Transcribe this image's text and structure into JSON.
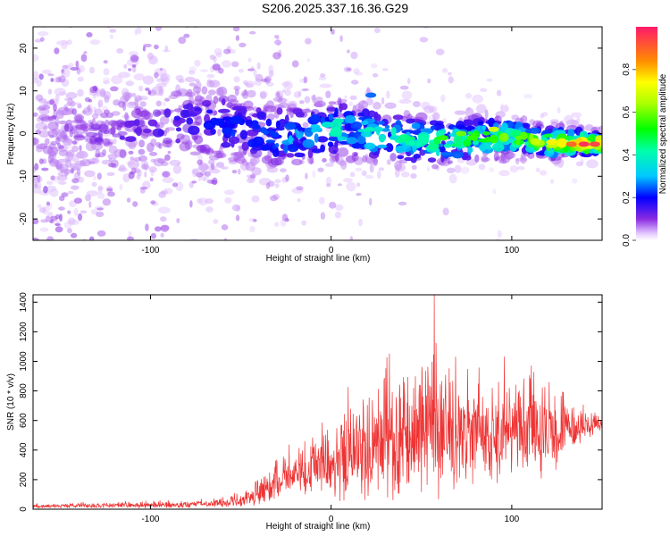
{
  "title": "S206.2025.337.16.36.G29",
  "chart_data": [
    {
      "type": "heatmap",
      "xlabel": "Height of straight line (km)",
      "ylabel": "Frequency (Hz)",
      "xlim": [
        -165,
        150
      ],
      "ylim": [
        -25,
        25
      ],
      "xticks": [
        -100,
        0,
        100
      ],
      "yticks": [
        -20,
        -10,
        0,
        10,
        20
      ],
      "xtick_labels": [
        "-100",
        "0",
        "100"
      ],
      "ytick_labels": [
        "-20",
        "-10",
        "0",
        "10",
        "20"
      ],
      "colorbar": {
        "label": "Normalized spectral amplitude",
        "range": [
          0.0,
          1.0
        ],
        "ticks": [
          0.0,
          0.2,
          0.4,
          0.6,
          0.8
        ],
        "tick_labels": [
          "0.0",
          "0.2",
          "0.4",
          "0.6",
          "0.8"
        ]
      },
      "ridge": {
        "x": [
          -165,
          -140,
          -120,
          -100,
          -80,
          -60,
          -40,
          -20,
          0,
          20,
          40,
          60,
          80,
          100,
          120,
          150
        ],
        "center_hz": [
          0,
          -1,
          0,
          1,
          3,
          2,
          0,
          -1,
          1,
          0,
          -1,
          -2,
          -1,
          -1,
          -2,
          -2.5
        ],
        "peak_amplitude": [
          0.05,
          0.08,
          0.1,
          0.12,
          0.15,
          0.2,
          0.22,
          0.3,
          0.38,
          0.4,
          0.42,
          0.5,
          0.55,
          0.6,
          0.7,
          0.95
        ]
      }
    },
    {
      "type": "line",
      "xlabel": "Height of straight line (km)",
      "ylabel": "SNR (10 * v/v)",
      "xlim": [
        -165,
        150
      ],
      "ylim": [
        0,
        1450
      ],
      "xticks": [
        -100,
        0,
        100
      ],
      "yticks": [
        0,
        200,
        400,
        600,
        800,
        1000,
        1200,
        1400
      ],
      "xtick_labels": [
        "-100",
        "0",
        "100"
      ],
      "ytick_labels": [
        "0",
        "200",
        "400",
        "600",
        "800",
        "1000",
        "1200",
        "1400"
      ],
      "color": "#ee3333",
      "envelope": {
        "x": [
          -165,
          -120,
          -80,
          -60,
          -50,
          -40,
          -30,
          -20,
          -10,
          0,
          5,
          10,
          20,
          30,
          40,
          50,
          55,
          60,
          70,
          80,
          90,
          100,
          110,
          120,
          130,
          140,
          150
        ],
        "mean": [
          20,
          25,
          30,
          40,
          60,
          100,
          180,
          230,
          260,
          300,
          330,
          380,
          420,
          450,
          480,
          500,
          520,
          500,
          520,
          520,
          510,
          540,
          520,
          500,
          520,
          560,
          580
        ],
        "spread": [
          15,
          20,
          25,
          30,
          50,
          90,
          150,
          180,
          200,
          250,
          300,
          380,
          400,
          450,
          480,
          500,
          520,
          450,
          400,
          380,
          350,
          380,
          350,
          300,
          250,
          100,
          60
        ]
      },
      "peak": {
        "x": 57,
        "y": 1450
      }
    }
  ]
}
